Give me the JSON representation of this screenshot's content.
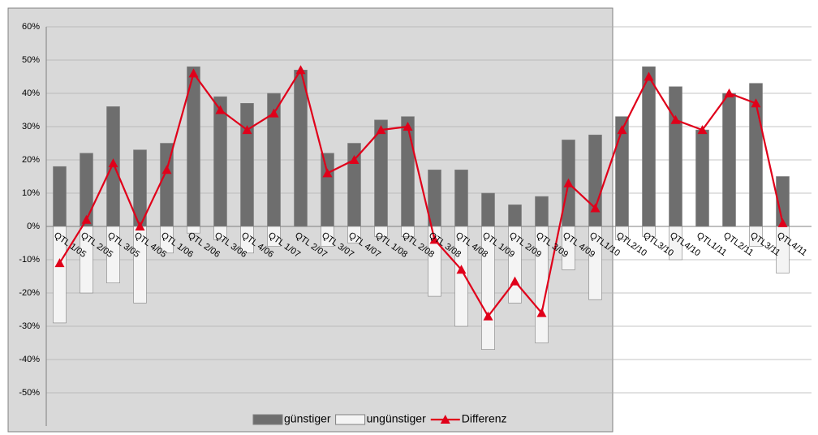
{
  "chart_data": {
    "type": "bar-line",
    "categories": [
      "QTL 1/05",
      "QTL 2/05",
      "QTL 3/05",
      "QTL 4/05",
      "QTL 1/06",
      "QTL 2/06",
      "QTL 3/06",
      "QTL 4/06",
      "QTL 1/07",
      "QTL 2/07",
      "QTL 3/07",
      "QTL 4/07",
      "QTL 1/08",
      "QTL 2/08",
      "QTL 3/08",
      "QTL 4/08",
      "QTL 1/09",
      "QTL 2/09",
      "QTL 3/09",
      "QTL 4/09",
      "QTL1/10",
      "QTL2/10",
      "QTL3/10",
      "QTL4/10",
      "QTL1/11",
      "QTL2/11",
      "QTL3/11",
      "QTL4/11"
    ],
    "series": [
      {
        "name": "günstiger",
        "type": "bar",
        "color": "#6e6e6e",
        "values": [
          18,
          22,
          36,
          23,
          25,
          48,
          39,
          37,
          40,
          47,
          22,
          25,
          32,
          33,
          17,
          17,
          10,
          6.5,
          9,
          26,
          27.5,
          33,
          48,
          42,
          29,
          40,
          43,
          15
        ]
      },
      {
        "name": "ungünstiger",
        "type": "bar",
        "color": "#f4f4f4",
        "values": [
          -29,
          -20,
          -17,
          -23,
          -8,
          -2,
          -4,
          -8,
          -6,
          0,
          -6,
          -5,
          -3,
          -3,
          -21,
          -30,
          -37,
          -23,
          -35,
          -13,
          -22,
          -4,
          -3,
          -10,
          0,
          0,
          -6,
          -14
        ]
      },
      {
        "name": "Differenz",
        "type": "line",
        "color": "#e0001a",
        "values": [
          -11,
          2,
          19,
          0,
          17,
          46,
          35,
          29,
          34,
          47,
          16,
          20,
          29,
          30,
          -4,
          -13,
          -27,
          -16.5,
          -26,
          13,
          5.5,
          29,
          45,
          32,
          29,
          40,
          37,
          1
        ]
      }
    ],
    "ylim": [
      -60,
      60
    ],
    "yticks": [
      {
        "value": -50,
        "label": "-50%"
      },
      {
        "value": -40,
        "label": "-40%"
      },
      {
        "value": -30,
        "label": "-30%"
      },
      {
        "value": -20,
        "label": "-20%"
      },
      {
        "value": -10,
        "label": "-10%"
      },
      {
        "value": 0,
        "label": "0%"
      },
      {
        "value": 10,
        "label": "10%"
      },
      {
        "value": 20,
        "label": "20%"
      },
      {
        "value": 30,
        "label": "30%"
      },
      {
        "value": 40,
        "label": "40%"
      },
      {
        "value": 50,
        "label": "50%"
      },
      {
        "value": 60,
        "label": "60%"
      }
    ],
    "grid": true
  }
}
